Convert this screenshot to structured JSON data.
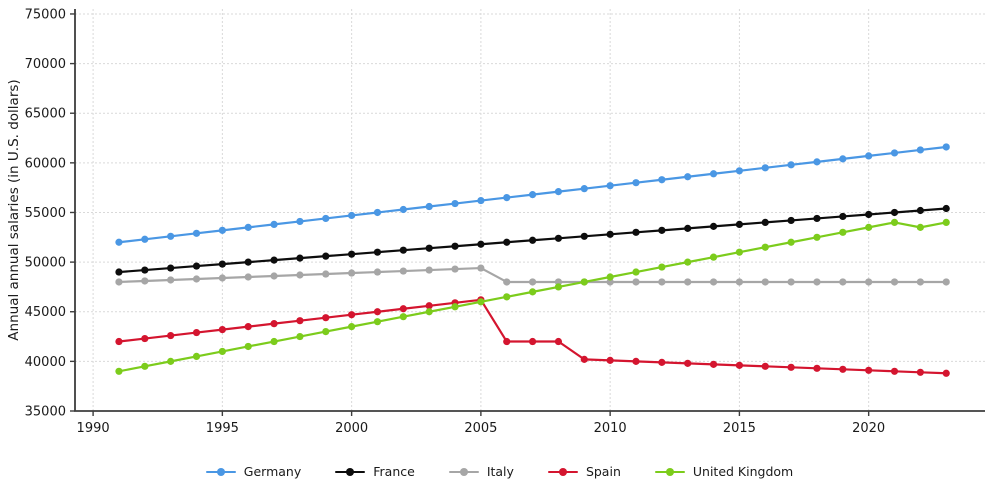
{
  "chart_data": {
    "type": "line",
    "title": "",
    "xlabel": "",
    "ylabel": "Annual annual salaries (in U.S. dollars)",
    "x": [
      1991,
      1992,
      1993,
      1994,
      1995,
      1996,
      1997,
      1998,
      1999,
      2000,
      2001,
      2002,
      2003,
      2004,
      2005,
      2006,
      2007,
      2008,
      2009,
      2010,
      2011,
      2012,
      2013,
      2014,
      2015,
      2016,
      2017,
      2018,
      2019,
      2020,
      2021,
      2022,
      2023
    ],
    "series": [
      {
        "name": "Germany",
        "color": "#4A97E4",
        "values": [
          52000,
          52300,
          52600,
          52900,
          53200,
          53500,
          53800,
          54100,
          54400,
          54700,
          55000,
          55300,
          55600,
          55900,
          56200,
          56500,
          56800,
          57100,
          57400,
          57700,
          58000,
          58300,
          58600,
          58900,
          59200,
          59500,
          59800,
          60100,
          60400,
          60700,
          61000,
          61300,
          61600
        ]
      },
      {
        "name": "France",
        "color": "#0d0d0d",
        "values": [
          49000,
          49200,
          49400,
          49600,
          49800,
          50000,
          50200,
          50400,
          50600,
          50800,
          51000,
          51200,
          51400,
          51600,
          51800,
          52000,
          52200,
          52400,
          52600,
          52800,
          53000,
          53200,
          53400,
          53600,
          53800,
          54000,
          54200,
          54400,
          54600,
          54800,
          55000,
          55200,
          55400
        ]
      },
      {
        "name": "Italy",
        "color": "#a6a6a6",
        "values": [
          48000,
          48100,
          48200,
          48300,
          48400,
          48500,
          48600,
          48700,
          48800,
          48900,
          49000,
          49100,
          49200,
          49300,
          49400,
          48000,
          48000,
          48000,
          48000,
          48000,
          48000,
          48000,
          48000,
          48000,
          48000,
          48000,
          48000,
          48000,
          48000,
          48000,
          48000,
          48000,
          48000
        ]
      },
      {
        "name": "Spain",
        "color": "#D4152F",
        "values": [
          42000,
          42300,
          42600,
          42900,
          43200,
          43500,
          43800,
          44100,
          44400,
          44700,
          45000,
          45300,
          45600,
          45900,
          46200,
          42000,
          42000,
          42000,
          40200,
          40100,
          40000,
          39900,
          39800,
          39700,
          39600,
          39500,
          39400,
          39300,
          39200,
          39100,
          39000,
          38900,
          38800
        ]
      },
      {
        "name": "United Kingdom",
        "color": "#7CCC1C",
        "values": [
          39000,
          39500,
          40000,
          40500,
          41000,
          41500,
          42000,
          42500,
          43000,
          43500,
          44000,
          44500,
          45000,
          45500,
          46000,
          46500,
          47000,
          47500,
          48000,
          48500,
          49000,
          49500,
          50000,
          50500,
          51000,
          51500,
          52000,
          52500,
          53000,
          53500,
          54000,
          53500,
          54000
        ]
      }
    ],
    "x_ticks": [
      1990,
      1995,
      2000,
      2005,
      2010,
      2015,
      2020
    ],
    "y_ticks": [
      35000,
      40000,
      45000,
      50000,
      55000,
      60000,
      65000,
      70000,
      75000
    ],
    "xlim": [
      1989.3,
      2024.5
    ],
    "ylim": [
      35000,
      75500
    ],
    "grid": true,
    "legend_position": "bottom"
  },
  "style": {
    "grid_color": "#d9d9d9",
    "spine_color": "#3d3d3d",
    "tick_label_color": "#1a1a1a"
  }
}
